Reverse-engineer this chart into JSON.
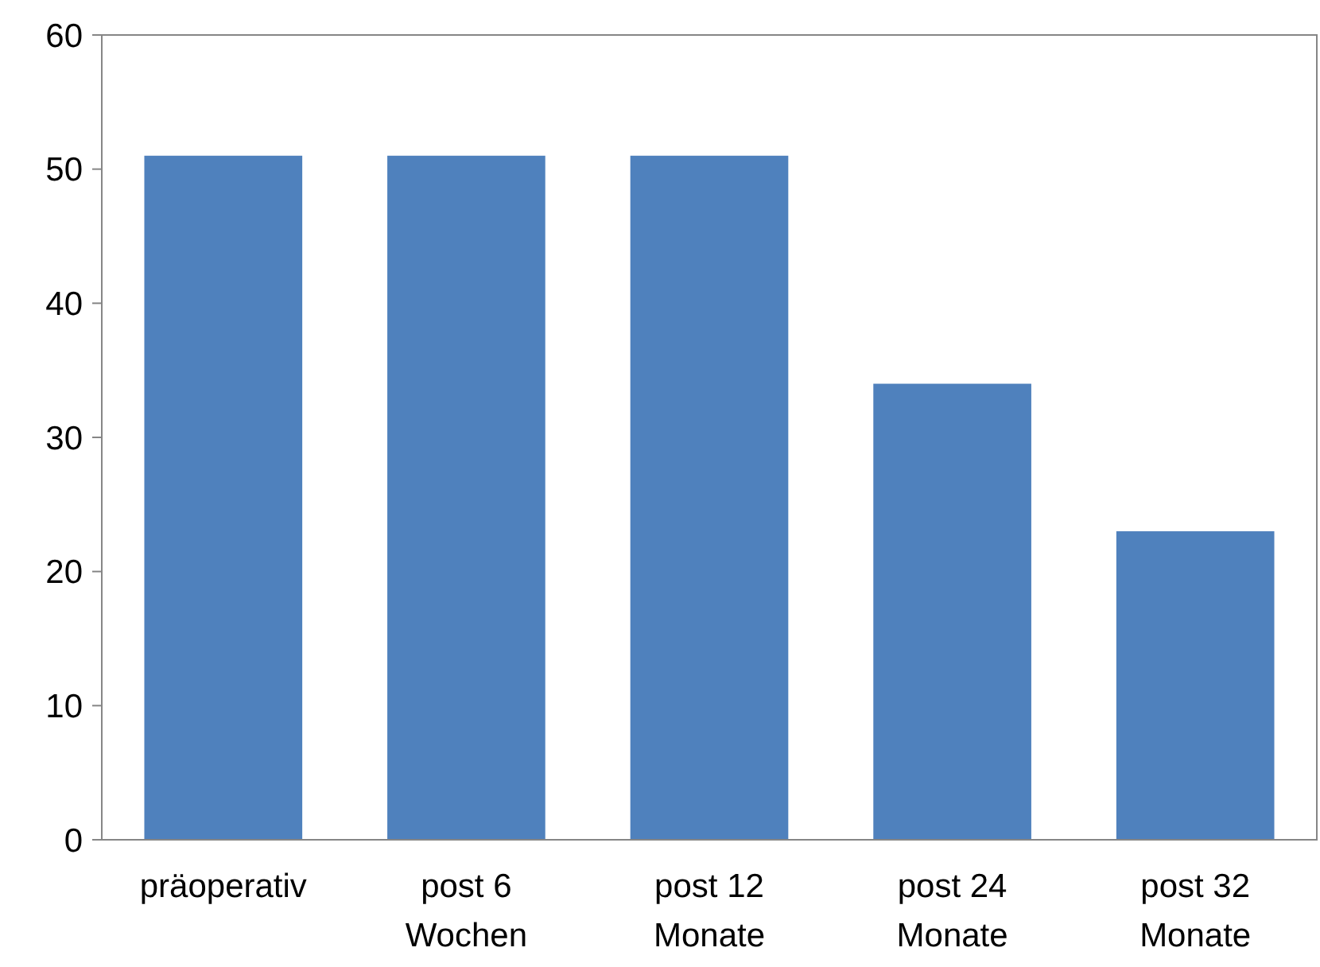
{
  "chart_data": {
    "type": "bar",
    "categories": [
      "präoperativ",
      "post 6 Wochen",
      "post 12 Monate",
      "post 24 Monate",
      "post 32 Monate"
    ],
    "values": [
      51,
      51,
      51,
      34,
      23
    ],
    "color": "#4f81bd",
    "ylim": [
      0,
      60
    ],
    "yticks": [
      0,
      10,
      20,
      30,
      40,
      50,
      60
    ],
    "grid": false
  }
}
